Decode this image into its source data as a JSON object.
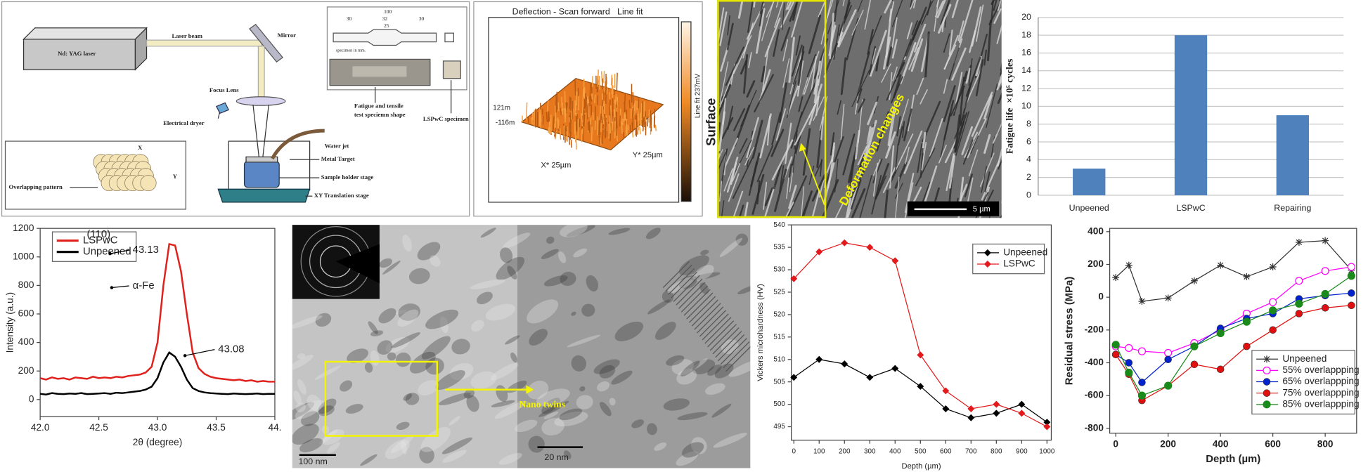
{
  "chart_data": [
    {
      "type": "bar",
      "ylabel": "Fatigue life  ×10⁵ cycles",
      "categories": [
        "Unpeened",
        "LSPwC",
        "Repairing"
      ],
      "values": [
        3,
        18,
        9
      ],
      "color": "#4f81bd",
      "ylim": [
        0,
        20
      ],
      "yticks": [
        0,
        2,
        4,
        6,
        8,
        10,
        12,
        14,
        16,
        18,
        20
      ],
      "grid": true
    },
    {
      "type": "line",
      "xlabel": "2θ (degree)",
      "ylabel": "Intensity (a.u.)",
      "x": [
        42,
        42.05,
        42.1,
        42.15,
        42.2,
        42.25,
        42.3,
        42.35,
        42.4,
        42.45,
        42.5,
        42.55,
        42.6,
        42.65,
        42.7,
        42.75,
        42.8,
        42.85,
        42.9,
        42.95,
        43,
        43.05,
        43.1,
        43.15,
        43.2,
        43.25,
        43.3,
        43.35,
        43.4,
        43.45,
        43.5,
        43.55,
        43.6,
        43.65,
        43.7,
        43.75,
        43.8,
        43.85,
        43.9,
        43.95,
        44
      ],
      "series": [
        {
          "name": "LSPwC",
          "color": "#e0201b",
          "values": [
            150,
            140,
            155,
            145,
            150,
            140,
            155,
            150,
            145,
            160,
            150,
            155,
            150,
            160,
            155,
            165,
            170,
            175,
            190,
            230,
            400,
            800,
            1090,
            1080,
            900,
            600,
            330,
            220,
            180,
            160,
            150,
            145,
            140,
            135,
            140,
            130,
            135,
            125,
            130,
            125,
            125
          ]
        },
        {
          "name": "Unpeened",
          "color": "#000000",
          "values": [
            40,
            35,
            45,
            40,
            38,
            42,
            40,
            45,
            38,
            40,
            42,
            45,
            40,
            48,
            45,
            50,
            55,
            60,
            70,
            90,
            150,
            260,
            330,
            300,
            230,
            140,
            80,
            60,
            50,
            45,
            42,
            40,
            38,
            42,
            40,
            38,
            40,
            42,
            38,
            40,
            40
          ]
        }
      ],
      "xlim": [
        42,
        44
      ],
      "ylim": [
        -120,
        1200
      ],
      "xticks": [
        {
          "value": 42,
          "label": "42.0"
        },
        42.5,
        {
          "value": 43,
          "label": "43.0"
        },
        43.5,
        {
          "value": 44,
          "label": "44."
        }
      ],
      "yticks": [
        0,
        200,
        400,
        600,
        800,
        1000,
        1200
      ],
      "legend": "upper left",
      "annotations": [
        "(110)",
        "43.13",
        "α-Fe",
        "43.08"
      ]
    },
    {
      "type": "line",
      "xlabel": "Depth (µm)",
      "ylabel": "Vickers microhardness (HV)",
      "x": [
        0,
        100,
        200,
        300,
        400,
        500,
        600,
        700,
        800,
        900,
        1000
      ],
      "series": [
        {
          "name": "Unpeened",
          "color": "#000000",
          "marker": "diamond",
          "values": [
            506,
            510,
            509,
            506,
            508,
            504,
            499,
            497,
            498,
            500,
            496
          ]
        },
        {
          "name": "LSPwC",
          "color": "#e3191c",
          "marker": "diamond",
          "values": [
            528,
            534,
            536,
            535,
            532,
            511,
            503,
            499,
            500,
            498,
            495
          ]
        }
      ],
      "xlim": [
        -10,
        1017
      ],
      "ylim": [
        492,
        540
      ],
      "xticks": [
        0,
        100,
        200,
        300,
        400,
        500,
        600,
        700,
        800,
        900,
        1000
      ],
      "yticks": [
        495,
        500,
        505,
        510,
        515,
        520,
        525,
        530,
        535,
        540
      ],
      "legend": "upper right"
    },
    {
      "type": "line",
      "xlabel": "Depth (µm)",
      "ylabel": "Residual stress (MPa)",
      "x": [
        0,
        50,
        100,
        200,
        300,
        400,
        500,
        600,
        700,
        800,
        900
      ],
      "series": [
        {
          "name": "Unpeened",
          "color": "#333333",
          "marker": "star",
          "values": [
            120,
            195,
            -25,
            -5,
            100,
            195,
            125,
            185,
            335,
            345,
            165
          ]
        },
        {
          "name": "55% overlappping",
          "color": "#ff00ff",
          "marker": "circle-open",
          "values": [
            -300,
            -310,
            -330,
            -340,
            -280,
            -200,
            -100,
            -30,
            100,
            160,
            185
          ]
        },
        {
          "name": "65% overlappping",
          "color": "#0022cc",
          "marker": "circle",
          "values": [
            -350,
            -400,
            -520,
            -380,
            -300,
            -190,
            -130,
            -100,
            -10,
            10,
            25
          ]
        },
        {
          "name": "75% overlappping",
          "color": "#e01010",
          "marker": "circle",
          "values": [
            -350,
            -470,
            -630,
            -540,
            -410,
            -440,
            -300,
            -200,
            -100,
            -65,
            -50
          ]
        },
        {
          "name": "85% overlappping",
          "color": "#1a8a1a",
          "marker": "circle-half",
          "values": [
            -290,
            -460,
            -600,
            -540,
            -300,
            -220,
            -150,
            -80,
            -40,
            20,
            130
          ]
        }
      ],
      "xlim": [
        -23,
        920
      ],
      "ylim": [
        -830,
        420
      ],
      "xticks": [
        0,
        200,
        400,
        600,
        800
      ],
      "yticks": [
        -800,
        -600,
        -400,
        -200,
        0,
        200,
        400
      ],
      "legend": "lower right"
    }
  ],
  "diagram": {
    "laser": "Nd: YAG laser",
    "beam": "Laser beam",
    "mirror": "Mirror",
    "lens": "Focus Lens",
    "dryer": "Electrical dryer",
    "water_jet": "Water jet",
    "target": "Metal Target",
    "holder": "Sample holder stage",
    "stage": "XY Translation stage",
    "pattern": "Overlapping pattern",
    "pattern_x": "X",
    "pattern_y": "Y",
    "specimen_shape": [
      "Fatigue and tensile",
      "test speciemn shape"
    ],
    "lspwc_specimen": "LSPwC specimen",
    "units": "specimen in mm.",
    "dimensions": [
      "100",
      "30",
      "32",
      "30",
      "25"
    ]
  },
  "afm": {
    "title": "Deflection - Scan forward   Line fit",
    "z_top": "121m",
    "z_bottom": "-116m",
    "x_range": "X* 25µm",
    "y_range": "Y* 25µm",
    "colorbar": "Line fit 237mV",
    "side_label": "Surface"
  },
  "sem": {
    "annotation": "Deformation changes",
    "scale": "5 µm"
  },
  "tem": {
    "annotation": "Nano twins",
    "scale_left": "100 nm",
    "scale_right": "20 nm"
  }
}
